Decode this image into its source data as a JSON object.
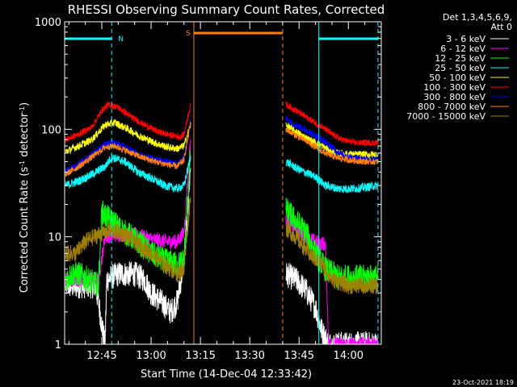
{
  "chart_data": {
    "type": "line",
    "title": "RHESSI Observing Summary Count Rates, Corrected",
    "xlabel": "Start Time (14-Dec-04 12:33:42)",
    "ylabel": "Corrected Count Rate (s⁻¹ detector⁻¹)",
    "ylabel_parts": {
      "main": "Corrected Count Rate (s",
      "sup1": "-1",
      "mid": " detector",
      "sup2": "-1",
      "end": ")"
    },
    "y_scale": "log",
    "ylim": [
      1,
      1000
    ],
    "xlim": [
      "12:33:42",
      "14:10:00"
    ],
    "x_ticks": [
      "12:45",
      "13:00",
      "13:15",
      "13:30",
      "13:45",
      "14:00"
    ],
    "y_ticks": [
      "1",
      "10",
      "100",
      "1000"
    ],
    "grid": false,
    "legend_position": "right",
    "legend_header": [
      "Det 1,3,4,5,6,9,",
      "Att 0"
    ],
    "footer_date": "23-Oct-2021 18:19",
    "flags": [
      {
        "label": "N",
        "color": "#00ffff",
        "x_start": "12:33:42",
        "x_end": "12:48",
        "style": "solid"
      },
      {
        "label": "S",
        "color": "#ff8000",
        "x_start": "13:13",
        "x_end": "13:40",
        "style": "solid"
      },
      {
        "label": "",
        "color": "#00ffff",
        "x_start": "13:51",
        "x_end": "14:09",
        "style": "solid"
      }
    ],
    "markers": [
      {
        "x": "12:48",
        "color": "#00ffff",
        "style": "dashed"
      },
      {
        "x": "13:13",
        "color": "#ff8000",
        "style": "solid"
      },
      {
        "x": "13:40",
        "color": "#ff8000",
        "style": "dashed"
      },
      {
        "x": "13:51",
        "color": "#00ffff",
        "style": "solid"
      },
      {
        "x": "14:09",
        "color": "#00ffff",
        "style": "dashed"
      }
    ],
    "segments": [
      [
        "12:33:42",
        "13:12"
      ],
      [
        "13:41",
        "14:09"
      ]
    ],
    "series": [
      {
        "name": "3 - 6 keV",
        "color": "#ffffff",
        "noise": 0.12,
        "points": [
          [
            "12:34",
            3.5
          ],
          [
            "12:40",
            3.5
          ],
          [
            "12:43",
            3.5
          ],
          [
            "12:44",
            2.5
          ],
          [
            "12:45",
            1.5
          ],
          [
            "12:46",
            1
          ],
          [
            "12:46:30",
            4
          ],
          [
            "12:50",
            4.5
          ],
          [
            "12:55",
            4.5
          ],
          [
            "12:58",
            4
          ],
          [
            "13:00",
            3
          ],
          [
            "13:03",
            2.5
          ],
          [
            "13:06",
            2
          ],
          [
            "13:08",
            2.5
          ],
          [
            "13:10",
            6
          ],
          [
            "13:12",
            45
          ],
          [
            "13:41",
            4.5
          ],
          [
            "13:44",
            4
          ],
          [
            "13:47",
            3.2
          ],
          [
            "13:50",
            2.2
          ],
          [
            "13:52",
            1.3
          ],
          [
            "13:54",
            1
          ],
          [
            "14:09",
            1
          ]
        ]
      },
      {
        "name": "6 - 12 keV",
        "color": "#ff00ff",
        "noise": 0.07,
        "points": [
          [
            "12:34",
            4
          ],
          [
            "12:40",
            4
          ],
          [
            "12:44",
            4
          ],
          [
            "12:46",
            10
          ],
          [
            "12:50",
            10.5
          ],
          [
            "12:55",
            10.5
          ],
          [
            "13:00",
            9.5
          ],
          [
            "13:05",
            9
          ],
          [
            "13:08",
            9
          ],
          [
            "13:10",
            11
          ],
          [
            "13:12",
            80
          ],
          [
            "13:41",
            14
          ],
          [
            "13:44",
            12
          ],
          [
            "13:47",
            10
          ],
          [
            "13:50",
            9
          ],
          [
            "13:53",
            8.5
          ],
          [
            "13:54",
            1
          ],
          [
            "14:09",
            1
          ]
        ]
      },
      {
        "name": "12 - 25 keV",
        "color": "#00ff00",
        "noise": 0.12,
        "points": [
          [
            "12:34",
            4
          ],
          [
            "12:36",
            4.5
          ],
          [
            "12:38",
            4.5
          ],
          [
            "12:44",
            3.5
          ],
          [
            "12:45",
            17
          ],
          [
            "12:48",
            14
          ],
          [
            "12:52",
            11
          ],
          [
            "12:56",
            9
          ],
          [
            "13:00",
            7
          ],
          [
            "13:04",
            6
          ],
          [
            "13:08",
            5.5
          ],
          [
            "13:10",
            6
          ],
          [
            "13:12",
            60
          ],
          [
            "13:41",
            18
          ],
          [
            "13:44",
            14
          ],
          [
            "13:47",
            11
          ],
          [
            "13:50",
            7
          ],
          [
            "13:53",
            5
          ],
          [
            "13:57",
            4.2
          ],
          [
            "14:09",
            4.2
          ]
        ]
      },
      {
        "name": "25 - 50 keV",
        "color": "#00ffff",
        "noise": 0.04,
        "points": [
          [
            "12:34",
            30
          ],
          [
            "12:38",
            33
          ],
          [
            "12:42",
            38
          ],
          [
            "12:46",
            45
          ],
          [
            "12:48",
            55
          ],
          [
            "12:52",
            50
          ],
          [
            "12:56",
            40
          ],
          [
            "13:00",
            35
          ],
          [
            "13:04",
            30
          ],
          [
            "13:08",
            28
          ],
          [
            "13:10",
            30
          ],
          [
            "13:12",
            55
          ],
          [
            "13:41",
            50
          ],
          [
            "13:45",
            42
          ],
          [
            "13:50",
            36
          ],
          [
            "13:53",
            30
          ],
          [
            "13:57",
            28
          ],
          [
            "14:02",
            28
          ],
          [
            "14:09",
            30
          ]
        ]
      },
      {
        "name": "50 - 100 keV",
        "color": "#ffff00",
        "noise": 0.035,
        "points": [
          [
            "12:34",
            62
          ],
          [
            "12:38",
            70
          ],
          [
            "12:42",
            80
          ],
          [
            "12:46",
            110
          ],
          [
            "12:49",
            115
          ],
          [
            "12:53",
            100
          ],
          [
            "12:57",
            85
          ],
          [
            "13:01",
            75
          ],
          [
            "13:05",
            68
          ],
          [
            "13:08",
            66
          ],
          [
            "13:10",
            70
          ],
          [
            "13:12",
            110
          ],
          [
            "13:41",
            110
          ],
          [
            "13:44",
            95
          ],
          [
            "13:48",
            80
          ],
          [
            "13:52",
            70
          ],
          [
            "13:56",
            60
          ],
          [
            "14:02",
            58
          ],
          [
            "14:09",
            58
          ]
        ]
      },
      {
        "name": "100 - 300 keV",
        "color": "#ff0000",
        "noise": 0.03,
        "points": [
          [
            "12:34",
            80
          ],
          [
            "12:38",
            90
          ],
          [
            "12:42",
            105
          ],
          [
            "12:45",
            150
          ],
          [
            "12:47",
            170
          ],
          [
            "12:50",
            160
          ],
          [
            "12:54",
            130
          ],
          [
            "12:58",
            110
          ],
          [
            "13:02",
            95
          ],
          [
            "13:06",
            88
          ],
          [
            "13:09",
            85
          ],
          [
            "13:10",
            90
          ],
          [
            "13:12",
            170
          ],
          [
            "13:41",
            170
          ],
          [
            "13:44",
            150
          ],
          [
            "13:48",
            125
          ],
          [
            "13:52",
            105
          ],
          [
            "13:55",
            90
          ],
          [
            "13:58",
            80
          ],
          [
            "14:02",
            75
          ],
          [
            "14:09",
            75
          ]
        ]
      },
      {
        "name": "300 - 800 keV",
        "color": "#0000ff",
        "noise": 0.035,
        "points": [
          [
            "12:34",
            40
          ],
          [
            "12:38",
            47
          ],
          [
            "12:42",
            58
          ],
          [
            "12:46",
            72
          ],
          [
            "12:49",
            75
          ],
          [
            "12:53",
            65
          ],
          [
            "12:57",
            57
          ],
          [
            "13:01",
            52
          ],
          [
            "13:05",
            50
          ],
          [
            "13:08",
            47
          ],
          [
            "13:10",
            55
          ],
          [
            "13:12",
            120
          ],
          [
            "13:41",
            125
          ],
          [
            "13:44",
            110
          ],
          [
            "13:48",
            95
          ],
          [
            "13:52",
            80
          ],
          [
            "13:55",
            68
          ],
          [
            "13:58",
            58
          ],
          [
            "14:02",
            54
          ],
          [
            "14:09",
            52
          ]
        ]
      },
      {
        "name": "800 - 7000 keV",
        "color": "#ff8000",
        "noise": 0.03,
        "points": [
          [
            "12:34",
            38
          ],
          [
            "12:38",
            45
          ],
          [
            "12:42",
            55
          ],
          [
            "12:46",
            68
          ],
          [
            "12:49",
            70
          ],
          [
            "12:53",
            62
          ],
          [
            "12:57",
            55
          ],
          [
            "13:01",
            50
          ],
          [
            "13:05",
            47
          ],
          [
            "13:08",
            45
          ],
          [
            "13:10",
            52
          ],
          [
            "13:12",
            115
          ],
          [
            "13:41",
            100
          ],
          [
            "13:44",
            88
          ],
          [
            "13:48",
            75
          ],
          [
            "13:52",
            62
          ],
          [
            "13:56",
            55
          ],
          [
            "14:00",
            52
          ],
          [
            "14:05",
            50
          ],
          [
            "14:09",
            50
          ]
        ]
      },
      {
        "name": "7000 - 15000 keV",
        "color": "#a08000",
        "noise": 0.08,
        "points": [
          [
            "12:34",
            7
          ],
          [
            "12:37",
            7
          ],
          [
            "12:40",
            9
          ],
          [
            "12:44",
            10.5
          ],
          [
            "12:48",
            11.5
          ],
          [
            "12:52",
            10.5
          ],
          [
            "12:56",
            8.5
          ],
          [
            "13:00",
            7
          ],
          [
            "13:04",
            5.5
          ],
          [
            "13:08",
            4.5
          ],
          [
            "13:10",
            5
          ],
          [
            "13:12",
            25
          ],
          [
            "13:41",
            12
          ],
          [
            "13:44",
            10
          ],
          [
            "13:48",
            7
          ],
          [
            "13:52",
            5.5
          ],
          [
            "13:55",
            4
          ],
          [
            "14:00",
            3.5
          ],
          [
            "14:09",
            3.5
          ]
        ]
      }
    ]
  }
}
